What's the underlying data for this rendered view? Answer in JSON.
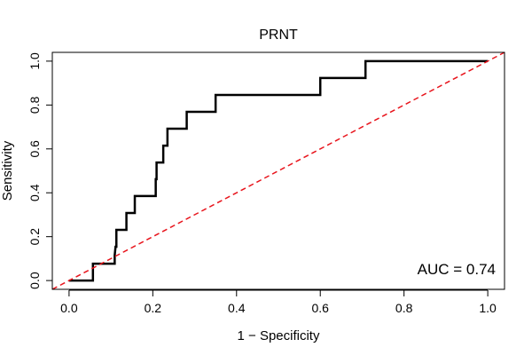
{
  "chart_data": {
    "type": "line",
    "title": "PRNT",
    "xlabel": "1 − Specificity",
    "ylabel": "Sensitivity",
    "xlim": [
      -0.04,
      1.04
    ],
    "ylim": [
      -0.04,
      1.04
    ],
    "x_ticks": [
      0.0,
      0.2,
      0.4,
      0.6,
      0.8,
      1.0
    ],
    "x_tick_labels": [
      "0.0",
      "0.2",
      "0.4",
      "0.6",
      "0.8",
      "1.0"
    ],
    "y_ticks": [
      0.0,
      0.2,
      0.4,
      0.6,
      0.8,
      1.0
    ],
    "y_tick_labels": [
      "0.0",
      "0.2",
      "0.4",
      "0.6",
      "0.8",
      "1.0"
    ],
    "grid": false,
    "annotation": "AUC = 0.74",
    "series": [
      {
        "name": "ROC",
        "color": "#000000",
        "style": "solid",
        "x": [
          0.0,
          0.057,
          0.057,
          0.109,
          0.109,
          0.111,
          0.113,
          0.113,
          0.137,
          0.137,
          0.157,
          0.157,
          0.207,
          0.207,
          0.209,
          0.209,
          0.225,
          0.225,
          0.235,
          0.235,
          0.281,
          0.281,
          0.35,
          0.35,
          0.6,
          0.6,
          0.708,
          0.708,
          1.0
        ],
        "y": [
          0.0,
          0.0,
          0.077,
          0.077,
          0.115,
          0.154,
          0.154,
          0.231,
          0.231,
          0.308,
          0.308,
          0.385,
          0.385,
          0.462,
          0.462,
          0.538,
          0.538,
          0.615,
          0.615,
          0.692,
          0.692,
          0.769,
          0.769,
          0.846,
          0.846,
          0.923,
          0.923,
          1.0,
          1.0
        ]
      },
      {
        "name": "Chance",
        "color": "#e8141c",
        "style": "dashed",
        "x": [
          -0.04,
          1.04
        ],
        "y": [
          -0.04,
          1.04
        ]
      }
    ]
  }
}
